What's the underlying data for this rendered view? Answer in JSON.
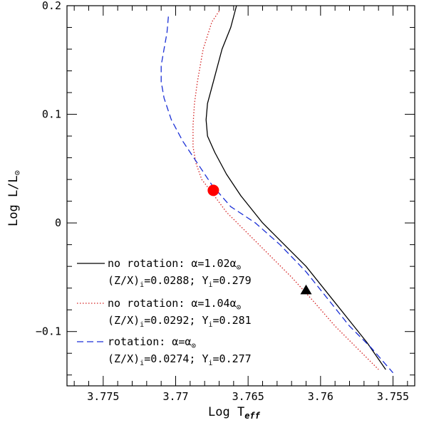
{
  "chart_data": {
    "type": "line",
    "xlabel": "Log T",
    "xlabel_sub": "eff",
    "ylabel": "Log L/L",
    "ylabel_sub": "⊙",
    "xlim": [
      3.7775,
      3.7535
    ],
    "ylim": [
      -0.15,
      0.2
    ],
    "x_reversed": true,
    "x_ticks": [
      3.775,
      3.77,
      3.765,
      3.76,
      3.755
    ],
    "x_tick_labels": [
      "3.775",
      "3.77",
      "3.765",
      "3.76",
      "3.755"
    ],
    "y_ticks": [
      -0.1,
      0,
      0.1,
      0.2
    ],
    "y_tick_labels": [
      "−0.1",
      "0",
      "0.1",
      "0.2"
    ],
    "series": [
      {
        "name": "no rotation: α=1.02α⊙",
        "detail": "(Z/X)i=0.0288; Yi=0.279",
        "color": "#000000",
        "style": "solid",
        "x": [
          3.7658,
          3.7662,
          3.7668,
          3.7674,
          3.7678,
          3.7679,
          3.7678,
          3.7673,
          3.7665,
          3.7655,
          3.764,
          3.7625,
          3.761,
          3.7595,
          3.758,
          3.7568,
          3.7555
        ],
        "y": [
          0.2,
          0.18,
          0.16,
          0.13,
          0.11,
          0.095,
          0.08,
          0.065,
          0.045,
          0.025,
          0.0,
          -0.02,
          -0.04,
          -0.065,
          -0.09,
          -0.11,
          -0.135
        ]
      },
      {
        "name": "no rotation: α=1.04α⊙",
        "detail": "(Z/X)i=0.0292; Yi=0.281",
        "color": "#d42020",
        "style": "dotted",
        "x": [
          3.767,
          3.7675,
          3.7681,
          3.7685,
          3.7687,
          3.7688,
          3.7688,
          3.7686,
          3.7682,
          3.7675,
          3.7665,
          3.765,
          3.7635,
          3.762,
          3.7605,
          3.759,
          3.7575,
          3.756
        ],
        "y": [
          0.195,
          0.185,
          0.16,
          0.13,
          0.11,
          0.09,
          0.07,
          0.055,
          0.04,
          0.028,
          0.01,
          -0.01,
          -0.03,
          -0.05,
          -0.072,
          -0.095,
          -0.115,
          -0.135
        ]
      },
      {
        "name": "rotation: α=α⊙",
        "detail": "(Z/X)i=0.0274; Yi=0.277",
        "color": "#1a2fd6",
        "style": "dashed",
        "x": [
          3.7705,
          3.7706,
          3.7708,
          3.771,
          3.771,
          3.7708,
          3.7703,
          3.7695,
          3.7685,
          3.7675,
          3.7662,
          3.7645,
          3.7628,
          3.761,
          3.7595,
          3.758,
          3.7565,
          3.755
        ],
        "y": [
          0.19,
          0.175,
          0.16,
          0.145,
          0.13,
          0.115,
          0.095,
          0.075,
          0.055,
          0.035,
          0.015,
          0.0,
          -0.02,
          -0.045,
          -0.07,
          -0.095,
          -0.115,
          -0.138
        ]
      }
    ],
    "markers": [
      {
        "shape": "circle",
        "color": "#ff0000",
        "x": 3.7674,
        "y": 0.03
      },
      {
        "shape": "triangle",
        "color": "#000000",
        "x": 3.761,
        "y": -0.062
      }
    ],
    "legend_position": "bottom-left",
    "grid": false
  },
  "legend_text": {
    "series0_line1": "no rotation: α=1.02α",
    "series0_line2_a": "(Z/X)",
    "series0_line2_b": "=0.0288; Y",
    "series0_line2_c": "=0.279",
    "series1_line1": "no rotation: α=1.04α",
    "series1_line2_a": "(Z/X)",
    "series1_line2_b": "=0.0292; Y",
    "series1_line2_c": "=0.281",
    "series2_line1": "rotation: α=α",
    "series2_line2_a": "(Z/X)",
    "series2_line2_b": "=0.0274; Y",
    "series2_line2_c": "=0.277",
    "sub_i": "i",
    "sun": "⊙"
  }
}
